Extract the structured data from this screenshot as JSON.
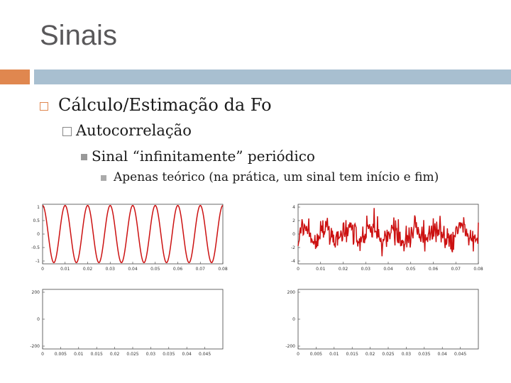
{
  "slide": {
    "title": "Sinais",
    "bullets": [
      "Cálculo/Estimação da Fo",
      "Autocorrelação",
      "Sinal “infinitamente” periódico",
      "Apenas teórico (na prática, um sinal tem início e fim)"
    ]
  },
  "colors": {
    "accent_orange": "#e0874f",
    "accent_blue": "#a8bfd0",
    "signal_red": "#cc1111"
  },
  "chart_data": [
    {
      "type": "line",
      "title": "",
      "x": [
        0,
        0.01,
        0.02,
        0.03,
        0.04,
        0.05,
        0.06,
        0.07,
        0.08
      ],
      "x_tick_labels": [
        "0",
        "0.01",
        "0.02",
        "0.03",
        "0.04",
        "0.05",
        "0.06",
        "0.07",
        "0.08"
      ],
      "y_tick_labels": [
        "1",
        "0.5",
        "0",
        "-0.5",
        "-1"
      ],
      "ylim": [
        -1,
        1
      ],
      "xlim": [
        0,
        0.08
      ],
      "series": [
        {
          "kind": "sine",
          "amplitude": 1,
          "period": 0.01,
          "phase_deg": 90
        }
      ]
    },
    {
      "type": "line",
      "title": "",
      "x_tick_labels": [
        "0",
        "0.01",
        "0.02",
        "0.03",
        "0.04",
        "0.05",
        "0.06",
        "0.07",
        "0.08"
      ],
      "y_tick_labels": [
        "4",
        "2",
        "0",
        "-2",
        "-4"
      ],
      "ylim": [
        -4,
        4
      ],
      "xlim": [
        0,
        0.08
      ],
      "series": [
        {
          "kind": "noisy",
          "amplitude": 1,
          "period": 0.01,
          "noise_std": 1
        }
      ]
    },
    {
      "type": "line",
      "title": "",
      "x_tick_labels": [
        "0",
        "0.005",
        "0.01",
        "0.015",
        "0.02",
        "0.025",
        "0.03",
        "0.035",
        "0.04",
        "0.045"
      ],
      "y_tick_labels": [
        "200",
        "0",
        "-200"
      ],
      "ylim": [
        -250,
        250
      ],
      "xlim": [
        0,
        0.05
      ],
      "series": []
    },
    {
      "type": "line",
      "title": "",
      "x_tick_labels": [
        "0",
        "0.005",
        "0.01",
        "0.015",
        "0.02",
        "0.025",
        "0.03",
        "0.035",
        "0.04",
        "0.045"
      ],
      "y_tick_labels": [
        "200",
        "0",
        "-200"
      ],
      "ylim": [
        -250,
        250
      ],
      "xlim": [
        0,
        0.05
      ],
      "series": []
    }
  ]
}
